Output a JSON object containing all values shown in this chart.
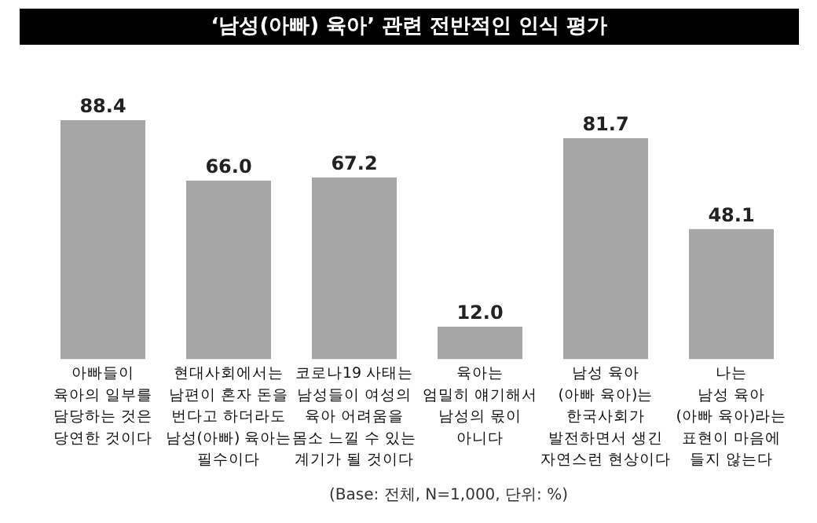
{
  "chart_data": {
    "type": "bar",
    "title": "‘남성(아빠) 육아’ 관련 전반적인 인식 평가",
    "categories": [
      "아빠들이\n육아의 일부를\n담당하는 것은\n당연한 것이다",
      "현대사회에서는\n남편이 혼자 돈을\n번다고 하더라도\n남성(아빠) 육아는\n필수이다",
      "코로나19 사태는\n남성들이 여성의\n육아 어려움을\n몸소 느낄 수 있는\n계기가 될 것이다",
      "육아는\n엄밀히 얘기해서\n남성의 몫이\n아니다",
      "남성 육아\n(아빠 육아)는\n한국사회가\n발전하면서 생긴\n자연스런 현상이다",
      "나는\n남성 육아\n(아빠 육아)라는\n표현이 마음에\n들지 않는다"
    ],
    "values": [
      88.4,
      66.0,
      67.2,
      12.0,
      81.7,
      48.1
    ],
    "color": "#a6a6a6",
    "value_labels": [
      "88.4",
      "66.0",
      "67.2",
      "12.0",
      "81.7",
      "48.1"
    ],
    "annotations": [
      "(Base: 전체, N=1,000, 단위: %)"
    ]
  }
}
